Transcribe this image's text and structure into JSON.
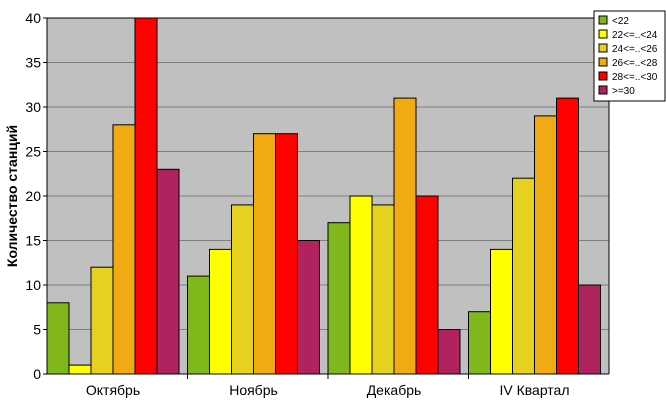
{
  "chart_data": {
    "type": "bar",
    "ylabel": "Количество станций",
    "xlabel": "",
    "ylim": [
      0,
      40
    ],
    "yticks": [
      0,
      5,
      10,
      15,
      20,
      25,
      30,
      35,
      40
    ],
    "grid": true,
    "legend_position": "top-right",
    "categories": [
      "Октябрь",
      "Ноябрь",
      "Декабрь",
      "IV Квартал"
    ],
    "series": [
      {
        "name": "<22",
        "color": "#80b81c",
        "values": [
          8,
          11,
          17,
          7
        ]
      },
      {
        "name": "22<=..<24",
        "color": "#ffff00",
        "values": [
          1,
          14,
          20,
          14
        ]
      },
      {
        "name": "24<=..<26",
        "color": "#e6d21e",
        "values": [
          12,
          19,
          19,
          22
        ]
      },
      {
        "name": "26<=..<28",
        "color": "#f0aa14",
        "values": [
          28,
          27,
          31,
          29
        ]
      },
      {
        "name": "28<=..<30",
        "color": "#ff0000",
        "values": [
          40,
          27,
          20,
          31
        ]
      },
      {
        "name": ">=30",
        "color": "#b0235f",
        "values": [
          23,
          15,
          5,
          10
        ]
      }
    ],
    "plot_background": "#c0c0c0"
  }
}
